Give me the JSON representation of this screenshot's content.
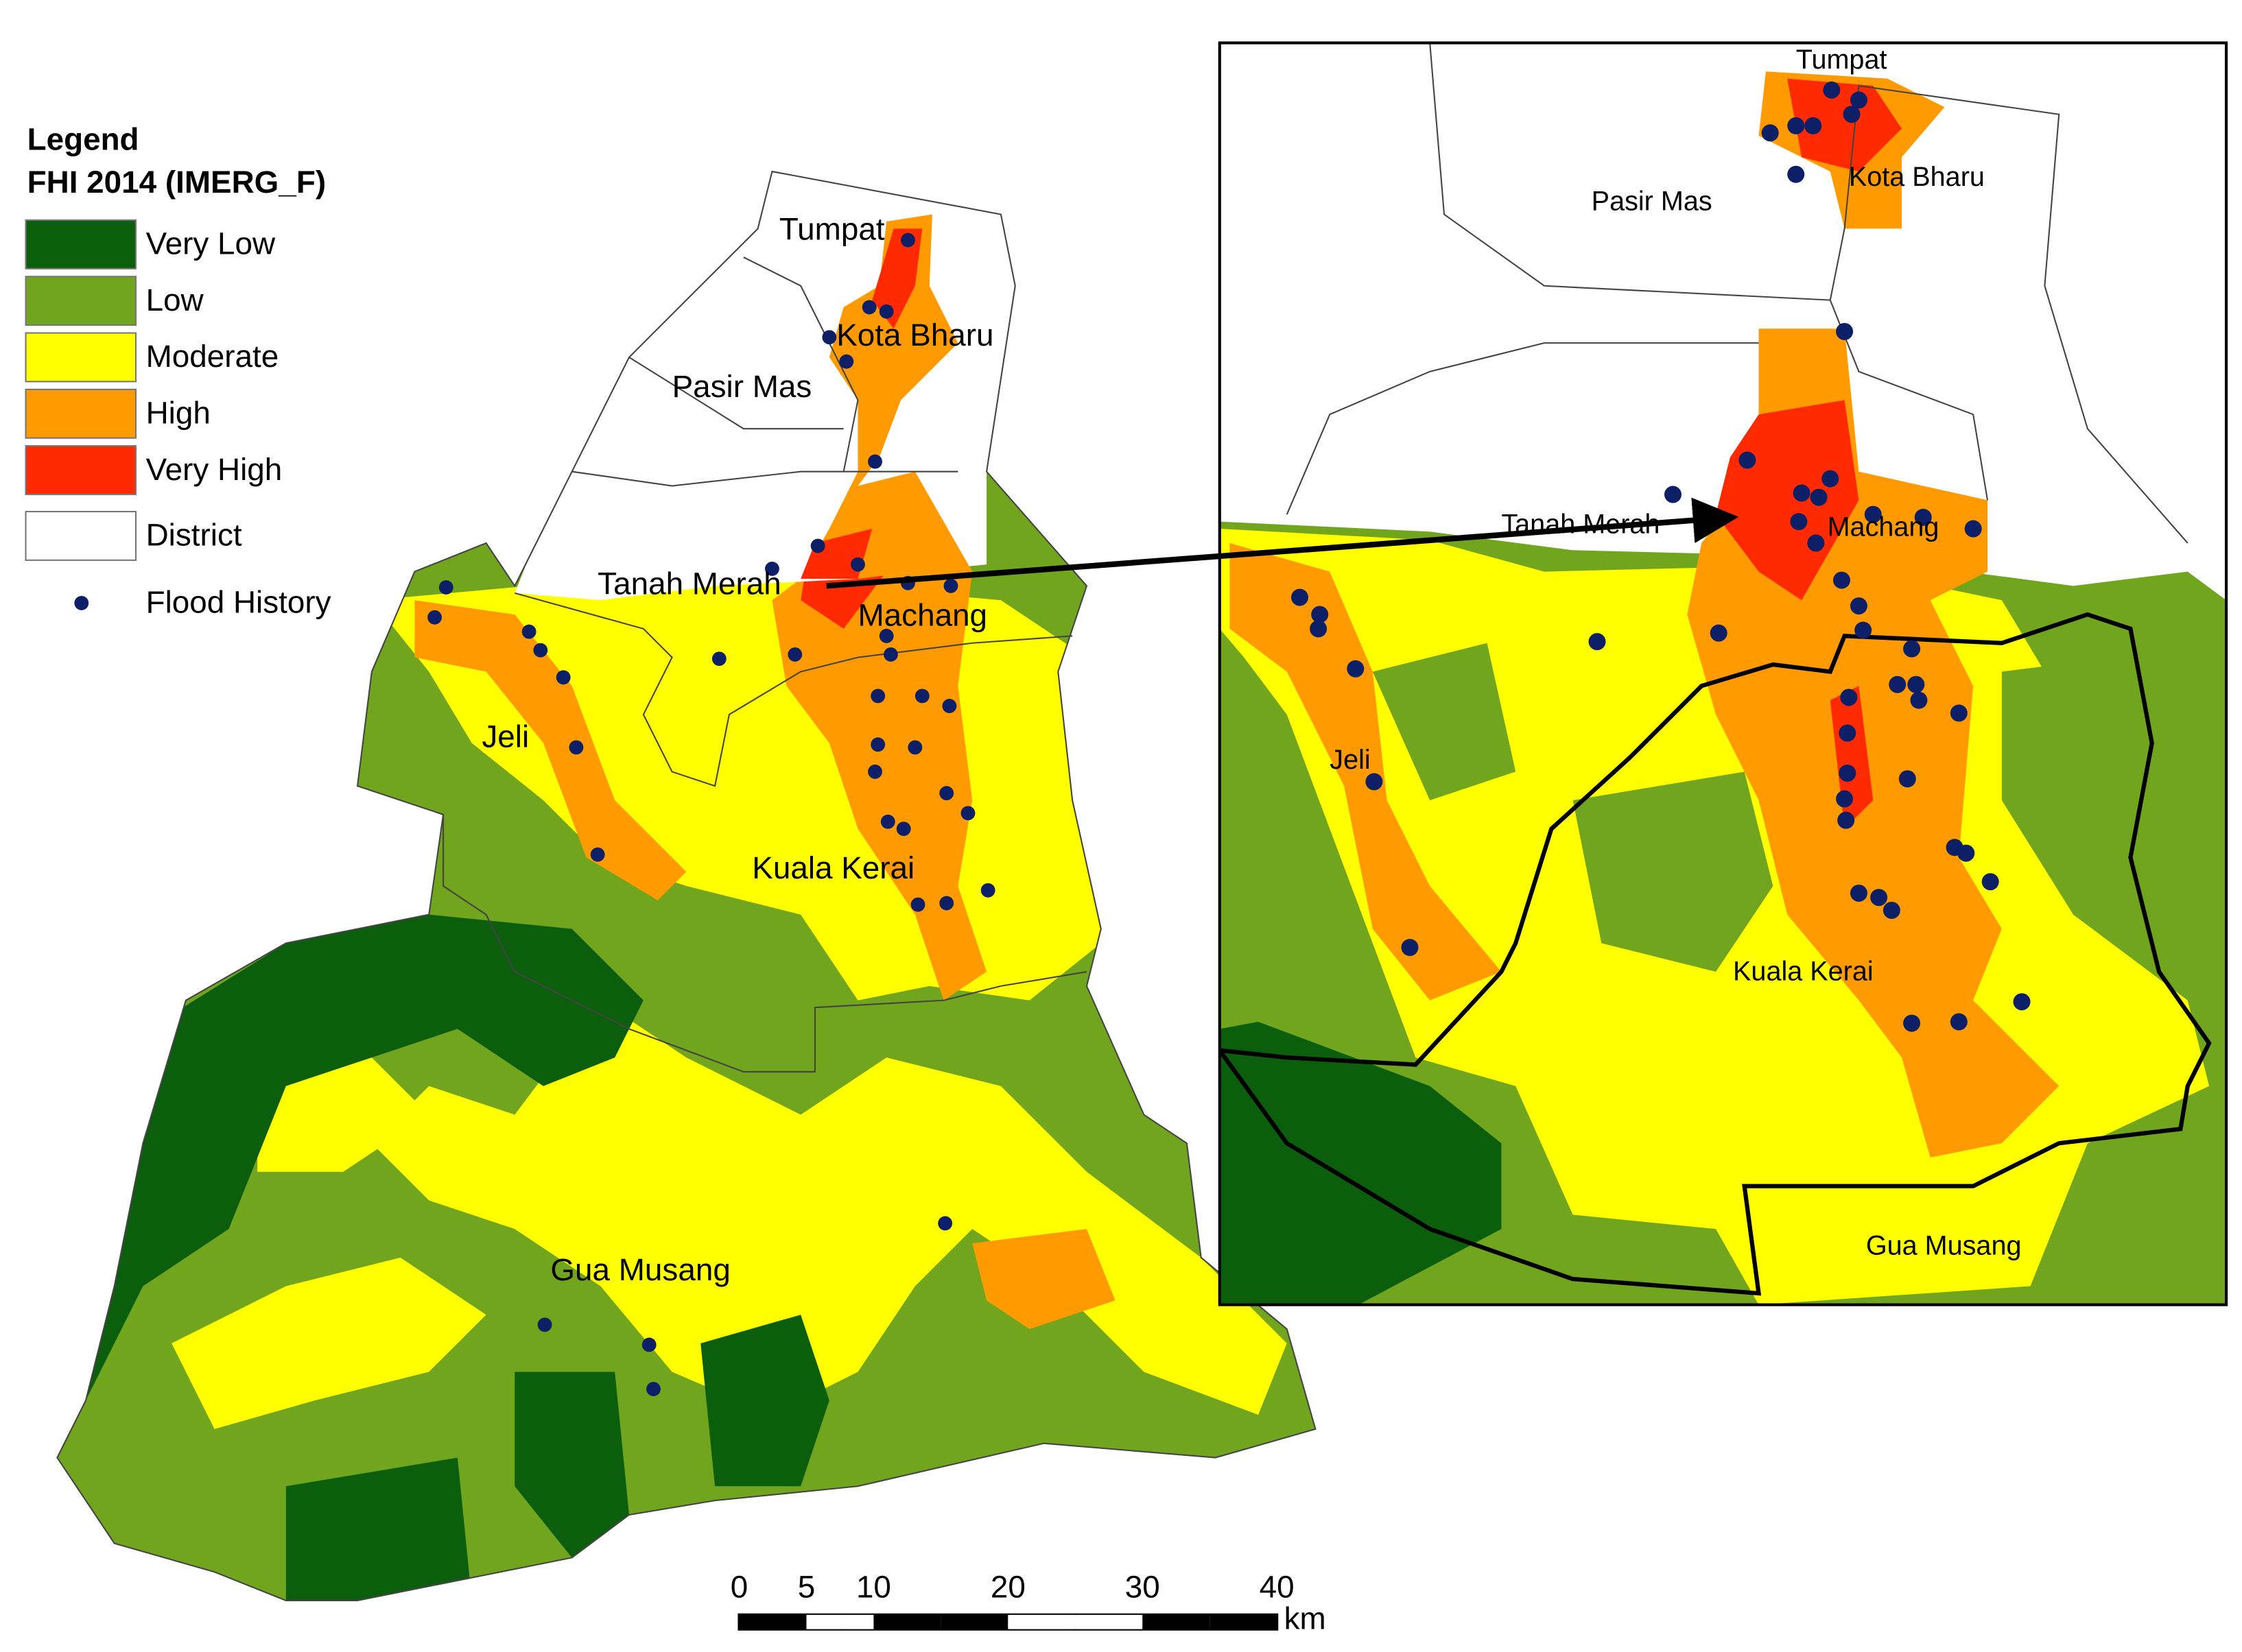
{
  "legend": {
    "heading": "Legend",
    "title": "FHI 2014 (IMERG_F)",
    "classes": [
      {
        "label": "Very Low",
        "color": "#0b5e0b"
      },
      {
        "label": "Low",
        "color": "#71a51e"
      },
      {
        "label": "Moderate",
        "color": "#ffff00"
      },
      {
        "label": "High",
        "color": "#ff9a00"
      },
      {
        "label": "Very High",
        "color": "#ff2a00"
      }
    ],
    "district": "District",
    "flood_history": "Flood History"
  },
  "main_map": {
    "labels": [
      "Tumpat",
      "Kota Bharu",
      "Pasir Mas",
      "Tanah Merah",
      "Machang",
      "Jeli",
      "Kuala Kerai",
      "Gua Musang"
    ]
  },
  "inset_map": {
    "labels": [
      "Tumpat",
      "Kota Bharu",
      "Pasir Mas",
      "Tanah Merah",
      "Machang",
      "Jeli",
      "Kuala Kerai",
      "Gua Musang"
    ]
  },
  "scale_bar": {
    "ticks": [
      0,
      5,
      10,
      20,
      30,
      40
    ],
    "unit": "km"
  }
}
